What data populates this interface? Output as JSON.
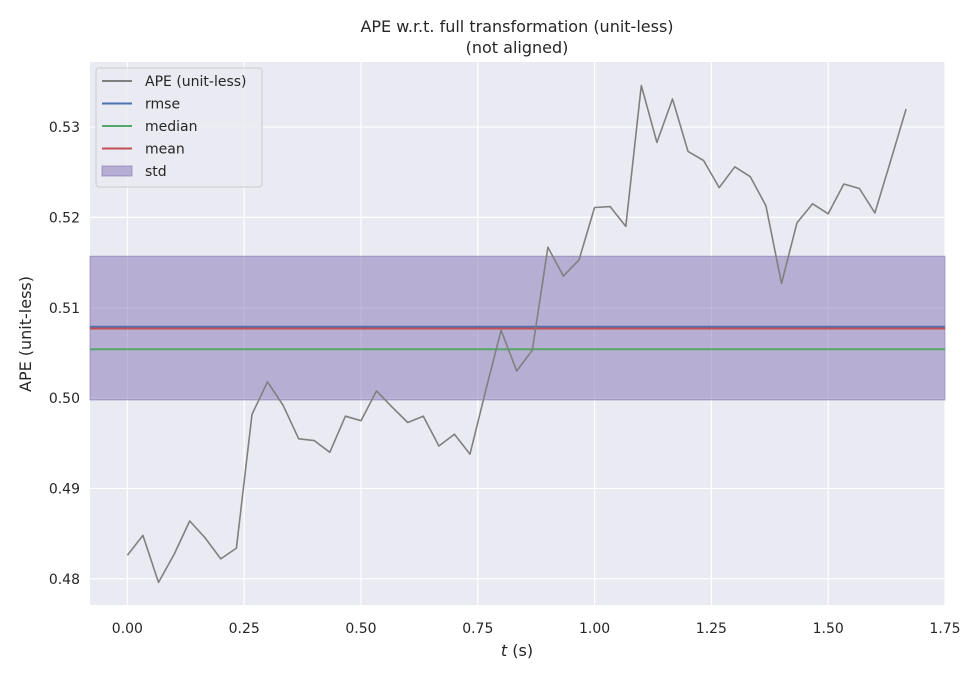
{
  "chart_data": {
    "type": "line",
    "title": "APE w.r.t. full transformation (unit-less)",
    "subtitle": "(not aligned)",
    "xlabel_var": "t",
    "xlabel_unit": " (s)",
    "ylabel": "APE (unit-less)",
    "xlim": [
      -0.08,
      1.75
    ],
    "ylim": [
      0.4771,
      0.5372
    ],
    "xticks": [
      0.0,
      0.25,
      0.5,
      0.75,
      1.0,
      1.25,
      1.5,
      1.75
    ],
    "xtick_labels": [
      "0.00",
      "0.25",
      "0.50",
      "0.75",
      "1.00",
      "1.25",
      "1.50",
      "1.75"
    ],
    "yticks": [
      0.48,
      0.49,
      0.5,
      0.51,
      0.52,
      0.53
    ],
    "ytick_labels": [
      "0.48",
      "0.49",
      "0.50",
      "0.51",
      "0.52",
      "0.53"
    ],
    "grid": true,
    "legend_position": "top-left",
    "legend": [
      {
        "label": "APE (unit-less)",
        "kind": "line",
        "color": "#808080"
      },
      {
        "label": "rmse",
        "kind": "line",
        "color": "#4c72b0"
      },
      {
        "label": "median",
        "kind": "line",
        "color": "#55a868"
      },
      {
        "label": "mean",
        "kind": "line",
        "color": "#c44e52"
      },
      {
        "label": "std",
        "kind": "patch",
        "color": "#8172b3"
      }
    ],
    "series": [
      {
        "color": "#808080",
        "x": [
          0.0,
          0.0333,
          0.0667,
          0.1,
          0.1333,
          0.1667,
          0.2,
          0.2333,
          0.2667,
          0.3,
          0.3333,
          0.3667,
          0.4,
          0.4333,
          0.4667,
          0.5,
          0.5333,
          0.5667,
          0.6,
          0.6333,
          0.6667,
          0.7,
          0.7333,
          0.7667,
          0.8,
          0.8333,
          0.8667,
          0.9,
          0.9333,
          0.9667,
          1.0,
          1.0333,
          1.0667,
          1.1,
          1.1333,
          1.1667,
          1.2,
          1.2333,
          1.2667,
          1.3,
          1.3333,
          1.3667,
          1.4,
          1.4333,
          1.4667,
          1.5,
          1.5333,
          1.5667,
          1.6,
          1.6333,
          1.6667
        ],
        "y": [
          0.4826,
          0.4848,
          0.4796,
          0.4827,
          0.4864,
          0.4845,
          0.4822,
          0.4834,
          0.4982,
          0.5018,
          0.4992,
          0.4955,
          0.4953,
          0.494,
          0.498,
          0.4975,
          0.5008,
          0.499,
          0.4973,
          0.498,
          0.4947,
          0.496,
          0.4938,
          0.5008,
          0.5075,
          0.503,
          0.5053,
          0.5167,
          0.5135,
          0.5153,
          0.5211,
          0.5212,
          0.519,
          0.5346,
          0.5283,
          0.5331,
          0.5273,
          0.5263,
          0.5233,
          0.5256,
          0.5245,
          0.5213,
          0.5127,
          0.5194,
          0.5215,
          0.5204,
          0.5237,
          0.5232,
          0.5205,
          0.5262,
          0.532
        ]
      }
    ],
    "stats": {
      "rmse": 0.5079,
      "median": 0.5054,
      "mean": 0.5077,
      "std_low": 0.4998,
      "std_high": 0.5157
    },
    "colors": {
      "plot_bg": "#eaeaf2",
      "grid": "#ffffff",
      "std_fill": "#8172b3",
      "rmse": "#4c72b0",
      "median": "#55a868",
      "mean": "#c44e52",
      "ape": "#808080"
    }
  }
}
